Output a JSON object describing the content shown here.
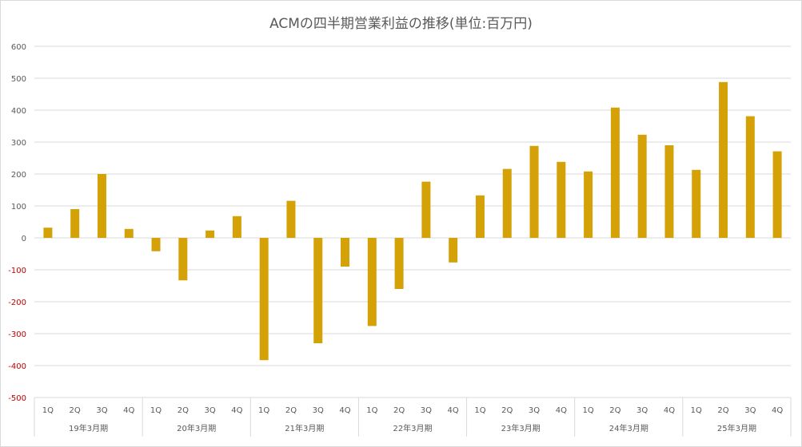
{
  "chart_data": {
    "type": "bar",
    "title": "ACMの四半期営業利益の推移(単位:百万円)",
    "xlabel": "",
    "ylabel": "",
    "ylim": [
      -500,
      600
    ],
    "yticks": [
      600,
      500,
      400,
      300,
      200,
      100,
      0,
      -100,
      -200,
      -300,
      -400,
      -500
    ],
    "negative_tick_color": "#c00000",
    "bar_color": "#d4a106",
    "grid": true,
    "legend": "none",
    "groups": [
      {
        "label": "19年3月期",
        "quarters": [
          "1Q",
          "2Q",
          "3Q",
          "4Q"
        ],
        "values": [
          32,
          90,
          200,
          28
        ]
      },
      {
        "label": "20年3月期",
        "quarters": [
          "1Q",
          "2Q",
          "3Q",
          "4Q"
        ],
        "values": [
          -42,
          -133,
          23,
          68
        ]
      },
      {
        "label": "21年3月期",
        "quarters": [
          "1Q",
          "2Q",
          "3Q",
          "4Q"
        ],
        "values": [
          -383,
          116,
          -330,
          -90
        ]
      },
      {
        "label": "22年3月期",
        "quarters": [
          "1Q",
          "2Q",
          "3Q",
          "4Q"
        ],
        "values": [
          -276,
          -160,
          176,
          -77
        ]
      },
      {
        "label": "23年3月期",
        "quarters": [
          "1Q",
          "2Q",
          "3Q",
          "4Q"
        ],
        "values": [
          133,
          216,
          288,
          238
        ]
      },
      {
        "label": "24年3月期",
        "quarters": [
          "1Q",
          "2Q",
          "3Q",
          "4Q"
        ],
        "values": [
          208,
          408,
          323,
          290
        ]
      },
      {
        "label": "25年3月期",
        "quarters": [
          "1Q",
          "2Q",
          "3Q",
          "4Q"
        ],
        "values": [
          213,
          488,
          381,
          271
        ]
      }
    ]
  }
}
